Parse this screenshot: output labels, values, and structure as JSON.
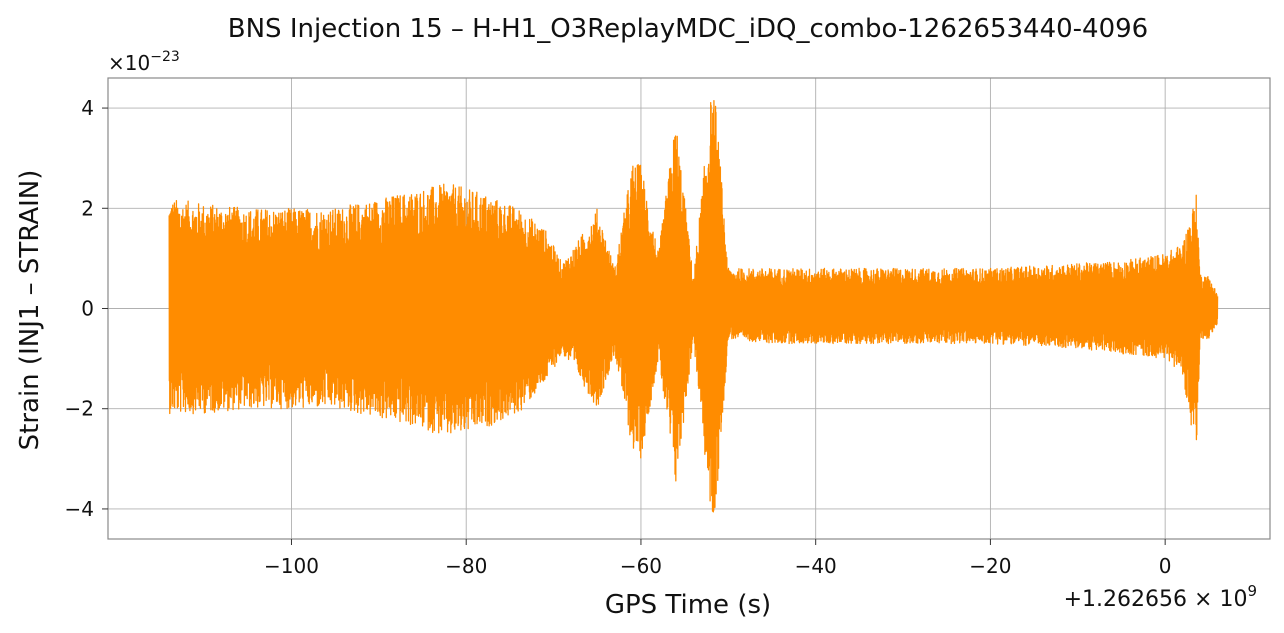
{
  "chart_data": {
    "type": "line",
    "title": "BNS Injection 15 – H-H1_O3ReplayMDC_iDQ_combo-1262653440-4096",
    "xlabel": "GPS Time (s)",
    "ylabel": "Strain (INJ1 – STRAIN)",
    "x_offset_label": "+1.262656 × 10",
    "x_offset_exp": "9",
    "y_scale_label": "×10",
    "y_scale_exp": "−23",
    "xlim": [
      -121,
      12
    ],
    "ylim": [
      -4.6,
      4.6
    ],
    "x_ticks": [
      -100,
      -80,
      -60,
      -40,
      -20,
      0
    ],
    "x_tick_labels": [
      "−100",
      "−80",
      "−60",
      "−40",
      "−20",
      "0"
    ],
    "y_ticks": [
      -4,
      -2,
      0,
      2,
      4
    ],
    "y_tick_labels": [
      "−4",
      "−2",
      "0",
      "2",
      "4"
    ],
    "grid": true,
    "series_color": "#ff8c00",
    "series": [
      {
        "x": [
          -114,
          -110,
          -105,
          -100,
          -95,
          -90,
          -85,
          -82,
          -78,
          -74,
          -71,
          -69,
          -67,
          -65,
          -63,
          -61,
          -60,
          -58,
          -56,
          -54,
          -52,
          -51.5,
          -50,
          -45,
          -40,
          -35,
          -30,
          -25,
          -20,
          -15,
          -10,
          -5,
          0,
          2,
          3.6,
          4,
          5,
          6
        ],
        "upper": [
          2.2,
          2.1,
          2.0,
          2.0,
          2.0,
          2.2,
          2.4,
          2.5,
          2.3,
          2.0,
          1.6,
          0.9,
          1.4,
          2.0,
          0.8,
          2.9,
          2.9,
          1.1,
          3.8,
          0.6,
          4.2,
          4.2,
          0.8,
          0.8,
          0.8,
          0.8,
          0.8,
          0.8,
          0.8,
          0.85,
          0.9,
          0.95,
          1.1,
          1.3,
          2.3,
          0.7,
          0.65,
          0.3
        ],
        "lower": [
          -2.1,
          -2.1,
          -2.0,
          -2.0,
          -2.0,
          -2.2,
          -2.4,
          -2.6,
          -2.4,
          -2.1,
          -1.5,
          -0.9,
          -1.4,
          -2.0,
          -0.9,
          -2.8,
          -3.0,
          -1.0,
          -3.6,
          -0.6,
          -4.2,
          -4.2,
          -0.6,
          -0.7,
          -0.7,
          -0.7,
          -0.7,
          -0.7,
          -0.7,
          -0.75,
          -0.8,
          -0.9,
          -1.0,
          -1.3,
          -3.1,
          -0.6,
          -0.6,
          -0.3
        ]
      }
    ]
  }
}
